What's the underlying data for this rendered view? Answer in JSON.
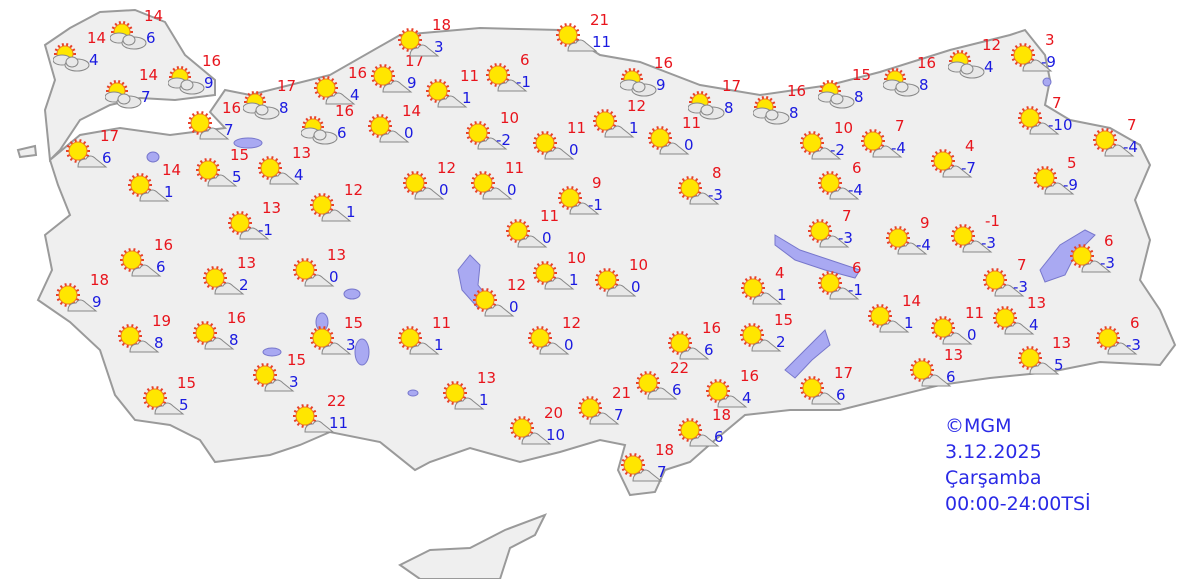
{
  "colors": {
    "high": "#e8141c",
    "low": "#1a1ae0",
    "land": "#efefef",
    "border": "#9a9a9a",
    "lake": "#a9a9f2",
    "credit": "#2a2ae6"
  },
  "stations": [
    {
      "hi": "14",
      "lo": "4",
      "icon": "partly-cloudy"
    },
    {
      "hi": "14",
      "lo": "6",
      "icon": "partly-cloudy"
    },
    {
      "hi": "14",
      "lo": "7",
      "icon": "partly-cloudy"
    },
    {
      "hi": "16",
      "lo": "9",
      "icon": "partly-cloudy"
    },
    {
      "hi": "17",
      "lo": "6",
      "icon": "sunny-cloud"
    },
    {
      "hi": "16",
      "lo": "7",
      "icon": "sunny-cloud"
    },
    {
      "hi": "17",
      "lo": "8",
      "icon": "partly-cloudy"
    },
    {
      "hi": "16",
      "lo": "4",
      "icon": "sunny-cloud"
    },
    {
      "hi": "16",
      "lo": "6",
      "icon": "partly-cloudy"
    },
    {
      "hi": "17",
      "lo": "9",
      "icon": "sunny-cloud"
    },
    {
      "hi": "18",
      "lo": "3",
      "icon": "sunny-cloud"
    },
    {
      "hi": "11",
      "lo": "1",
      "icon": "sunny-cloud"
    },
    {
      "hi": "6",
      "lo": "-1",
      "icon": "sunny-cloud"
    },
    {
      "hi": "21",
      "lo": "11",
      "icon": "sunny-cloud"
    },
    {
      "hi": "16",
      "lo": "9",
      "icon": "partly-cloudy"
    },
    {
      "hi": "14",
      "lo": "0",
      "icon": "sunny-cloud"
    },
    {
      "hi": "10",
      "lo": "-2",
      "icon": "sunny-cloud"
    },
    {
      "hi": "11",
      "lo": "0",
      "icon": "sunny-cloud"
    },
    {
      "hi": "12",
      "lo": "1",
      "icon": "sunny-cloud"
    },
    {
      "hi": "11",
      "lo": "0",
      "icon": "sunny-cloud"
    },
    {
      "hi": "17",
      "lo": "8",
      "icon": "partly-cloudy"
    },
    {
      "hi": "16",
      "lo": "8",
      "icon": "partly-cloudy"
    },
    {
      "hi": "15",
      "lo": "8",
      "icon": "partly-cloudy"
    },
    {
      "hi": "16",
      "lo": "8",
      "icon": "partly-cloudy"
    },
    {
      "hi": "12",
      "lo": "4",
      "icon": "partly-cloudy"
    },
    {
      "hi": "3",
      "lo": "-9",
      "icon": "sunny-cloud"
    },
    {
      "hi": "7",
      "lo": "-10",
      "icon": "sunny-cloud"
    },
    {
      "hi": "7",
      "lo": "-4",
      "icon": "sunny-cloud"
    },
    {
      "hi": "10",
      "lo": "-2",
      "icon": "sunny-cloud"
    },
    {
      "hi": "7",
      "lo": "-4",
      "icon": "sunny-cloud"
    },
    {
      "hi": "4",
      "lo": "-7",
      "icon": "sunny-cloud"
    },
    {
      "hi": "5",
      "lo": "-9",
      "icon": "sunny-cloud"
    },
    {
      "hi": "6",
      "lo": "-4",
      "icon": "sunny-cloud"
    },
    {
      "hi": "14",
      "lo": "1",
      "icon": "sunny-cloud"
    },
    {
      "hi": "15",
      "lo": "5",
      "icon": "sunny-cloud"
    },
    {
      "hi": "13",
      "lo": "4",
      "icon": "sunny-cloud"
    },
    {
      "hi": "12",
      "lo": "1",
      "icon": "sunny-cloud"
    },
    {
      "hi": "13",
      "lo": "-1",
      "icon": "sunny-cloud"
    },
    {
      "hi": "12",
      "lo": "0",
      "icon": "sunny-cloud"
    },
    {
      "hi": "11",
      "lo": "0",
      "icon": "sunny-cloud"
    },
    {
      "hi": "9",
      "lo": "-1",
      "icon": "sunny-cloud"
    },
    {
      "hi": "8",
      "lo": "-3",
      "icon": "sunny-cloud"
    },
    {
      "hi": "11",
      "lo": "0",
      "icon": "sunny-cloud"
    },
    {
      "hi": "16",
      "lo": "6",
      "icon": "sunny-cloud"
    },
    {
      "hi": "13",
      "lo": "2",
      "icon": "sunny-cloud"
    },
    {
      "hi": "13",
      "lo": "0",
      "icon": "sunny-cloud"
    },
    {
      "hi": "18",
      "lo": "9",
      "icon": "sunny-cloud"
    },
    {
      "hi": "10",
      "lo": "1",
      "icon": "sunny-cloud"
    },
    {
      "hi": "10",
      "lo": "0",
      "icon": "sunny-cloud"
    },
    {
      "hi": "12",
      "lo": "0",
      "icon": "sunny-cloud"
    },
    {
      "hi": "7",
      "lo": "-3",
      "icon": "sunny-cloud"
    },
    {
      "hi": "9",
      "lo": "-4",
      "icon": "sunny-cloud"
    },
    {
      "hi": "-1",
      "lo": "-3",
      "icon": "sunny-cloud"
    },
    {
      "hi": "6",
      "lo": "-3",
      "icon": "sunny-cloud"
    },
    {
      "hi": "7",
      "lo": "-3",
      "icon": "sunny-cloud"
    },
    {
      "hi": "4",
      "lo": "1",
      "icon": "sunny-cloud"
    },
    {
      "hi": "6",
      "lo": "-1",
      "icon": "sunny-cloud"
    },
    {
      "hi": "14",
      "lo": "1",
      "icon": "sunny-cloud"
    },
    {
      "hi": "11",
      "lo": "0",
      "icon": "sunny-cloud"
    },
    {
      "hi": "13",
      "lo": "4",
      "icon": "sunny-cloud"
    },
    {
      "hi": "19",
      "lo": "8",
      "icon": "sunny-cloud"
    },
    {
      "hi": "16",
      "lo": "8",
      "icon": "sunny-cloud"
    },
    {
      "hi": "15",
      "lo": "3",
      "icon": "sunny-cloud"
    },
    {
      "hi": "11",
      "lo": "1",
      "icon": "sunny-cloud"
    },
    {
      "hi": "12",
      "lo": "0",
      "icon": "sunny-cloud"
    },
    {
      "hi": "16",
      "lo": "6",
      "icon": "sunny-cloud"
    },
    {
      "hi": "15",
      "lo": "2",
      "icon": "sunny-cloud"
    },
    {
      "hi": "15",
      "lo": "3",
      "icon": "sunny-cloud"
    },
    {
      "hi": "15",
      "lo": "5",
      "icon": "sunny-cloud"
    },
    {
      "hi": "13",
      "lo": "1",
      "icon": "sunny-cloud"
    },
    {
      "hi": "22",
      "lo": "6",
      "icon": "sunny-cloud"
    },
    {
      "hi": "16",
      "lo": "4",
      "icon": "sunny-cloud"
    },
    {
      "hi": "17",
      "lo": "6",
      "icon": "sunny-cloud"
    },
    {
      "hi": "13",
      "lo": "6",
      "icon": "sunny-cloud"
    },
    {
      "hi": "13",
      "lo": "5",
      "icon": "sunny-cloud"
    },
    {
      "hi": "6",
      "lo": "-3",
      "icon": "sunny-cloud"
    },
    {
      "hi": "22",
      "lo": "11",
      "icon": "sunny-cloud"
    },
    {
      "hi": "20",
      "lo": "10",
      "icon": "sunny-cloud"
    },
    {
      "hi": "21",
      "lo": "7",
      "icon": "sunny-cloud"
    },
    {
      "hi": "18",
      "lo": "6",
      "icon": "sunny-cloud"
    },
    {
      "hi": "18",
      "lo": "7",
      "icon": "sunny-cloud"
    }
  ],
  "credit": {
    "source": "©MGM",
    "date": "3.12.2025",
    "day": "Çarşamba",
    "period": "00:00-24:00TSİ"
  }
}
